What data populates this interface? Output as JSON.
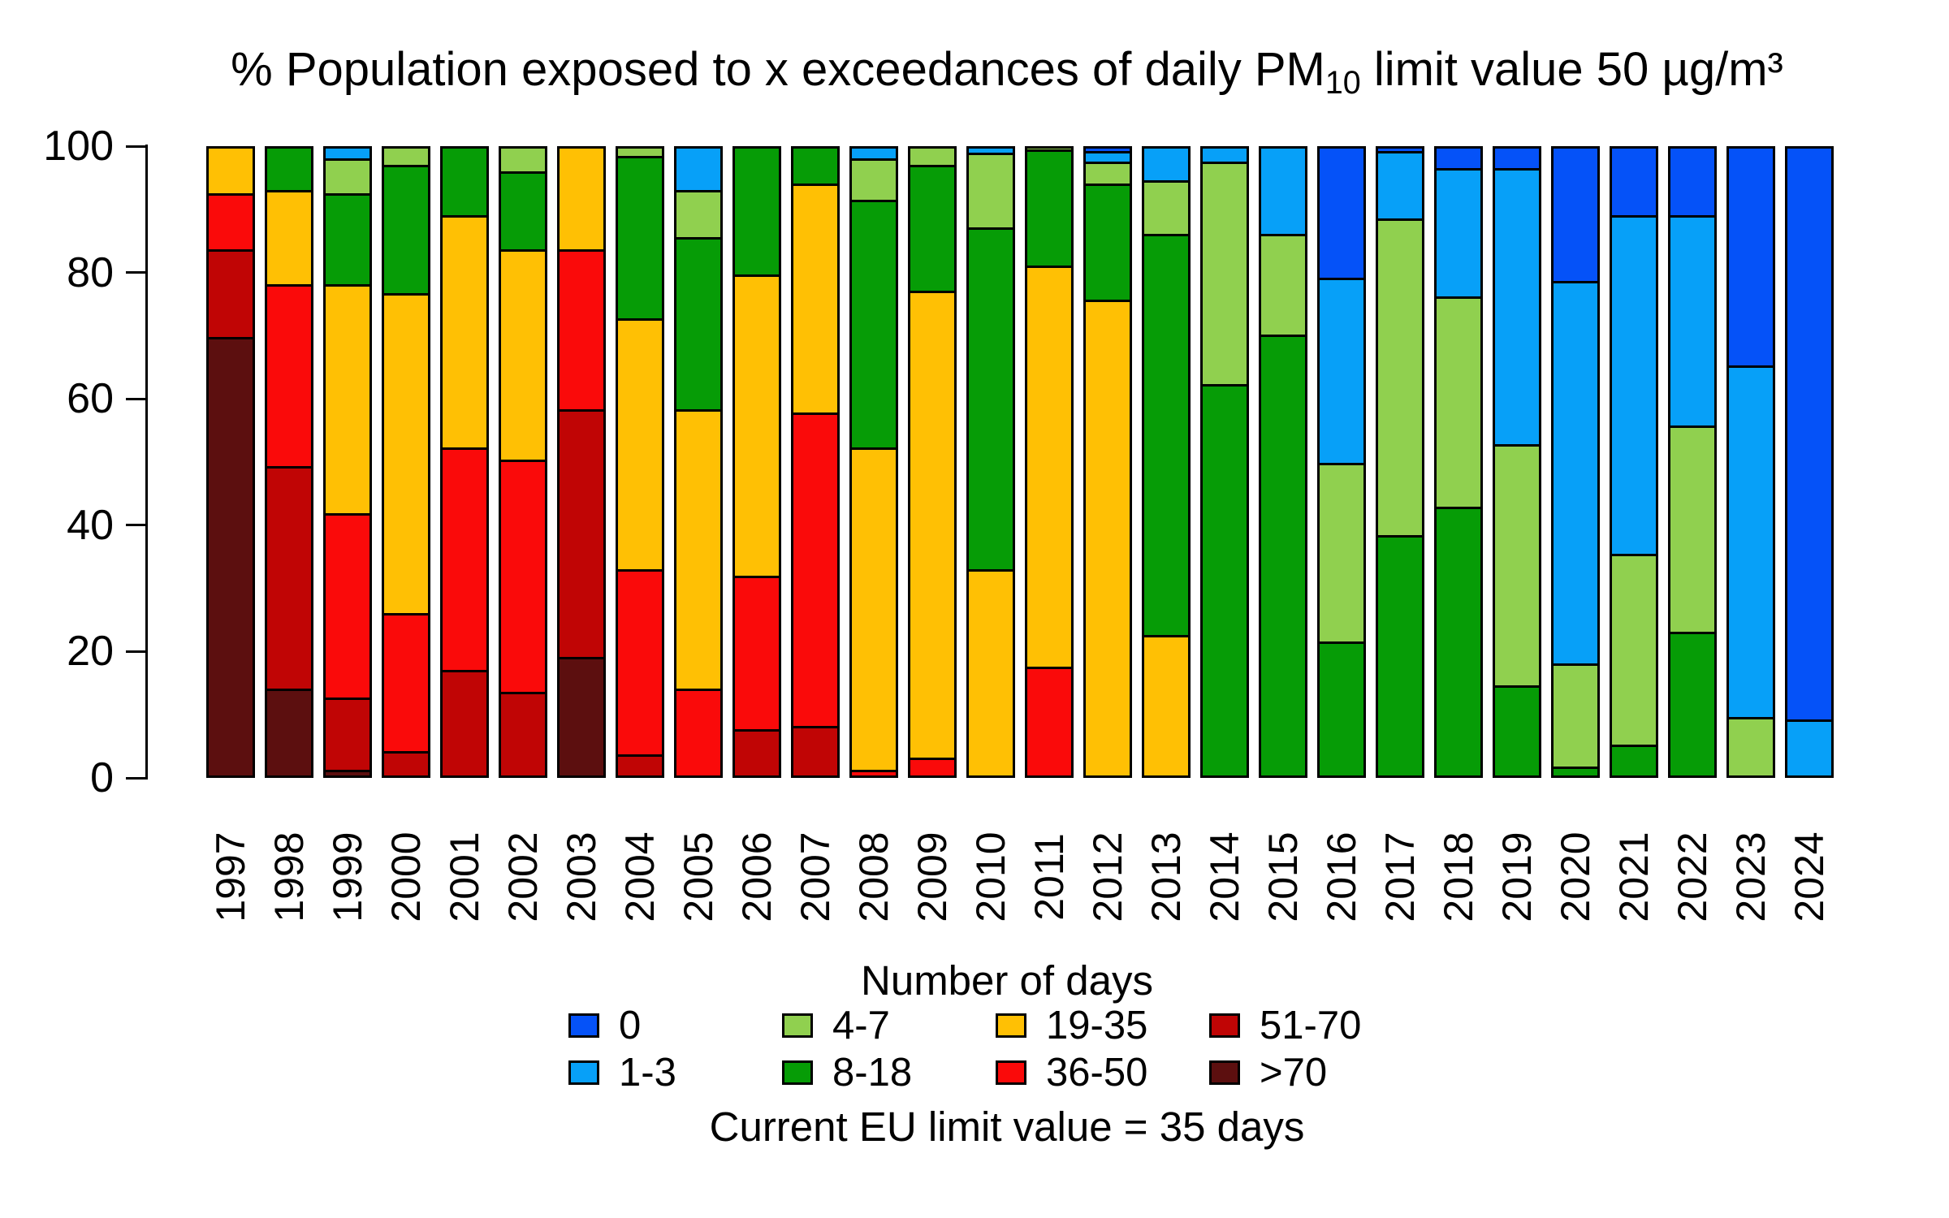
{
  "title": {
    "prefix": "% Population exposed to x exceedances of daily PM",
    "sub": "10",
    "suffix": " limit value 50 µg/m³"
  },
  "y_axis": {
    "ticks": [
      "0",
      "20",
      "40",
      "60",
      "80",
      "100"
    ]
  },
  "legend": {
    "title": "Number of days",
    "note": "Current EU limit value = 35 days",
    "items": [
      {
        "label": "0",
        "color": "#0552F8"
      },
      {
        "label": "1-3",
        "color": "#07A0F8"
      },
      {
        "label": "4-7",
        "color": "#90D04F"
      },
      {
        "label": "8-18",
        "color": "#069C06"
      },
      {
        "label": "19-35",
        "color": "#FFC004"
      },
      {
        "label": "36-50",
        "color": "#FA0A0A"
      },
      {
        "label": "51-70",
        "color": "#C00505"
      },
      {
        "label": ">70",
        "color": "#5C0F0F"
      }
    ]
  },
  "chart_data": {
    "type": "bar",
    "variant": "stacked_percent",
    "title": "% Population exposed to x exceedances of daily PM10 limit value 50 µg/m³",
    "xlabel": "",
    "ylabel": "",
    "ylim": [
      0,
      100
    ],
    "grid": false,
    "legend_position": "bottom",
    "legend_title": "Number of days",
    "annotation": "Current EU limit value = 35 days",
    "categories": [
      "1997",
      "1998",
      "1999",
      "2000",
      "2001",
      "2002",
      "2003",
      "2004",
      "2005",
      "2006",
      "2007",
      "2008",
      "2009",
      "2010",
      "2011",
      "2012",
      "2013",
      "2014",
      "2015",
      "2016",
      "2017",
      "2018",
      "2019",
      "2020",
      "2021",
      "2022",
      "2023",
      "2024"
    ],
    "stack_order_bottom_to_top": [
      ">70",
      "51-70",
      "36-50",
      "19-35",
      "8-18",
      "4-7",
      "1-3",
      "0"
    ],
    "series": [
      {
        "name": ">70",
        "color": "#5C0F0F",
        "values": [
          69.5,
          13.5,
          0.5,
          0,
          0,
          0,
          18.5,
          0,
          0,
          0,
          0,
          0,
          0,
          0,
          0,
          0,
          0,
          0,
          0,
          0,
          0,
          0,
          0,
          0,
          0,
          0,
          0,
          0
        ]
      },
      {
        "name": "51-70",
        "color": "#C00505",
        "values": [
          14,
          35.5,
          11.5,
          3.5,
          16.5,
          13,
          39.5,
          3,
          0,
          7,
          7.5,
          0,
          0,
          0,
          0,
          0,
          0,
          0,
          0,
          0,
          0,
          0,
          0,
          0,
          0,
          0,
          0,
          0
        ]
      },
      {
        "name": "36-50",
        "color": "#FA0A0A",
        "values": [
          9,
          29,
          29.5,
          22,
          35.5,
          37,
          25.5,
          29.5,
          13.5,
          24.5,
          50,
          0.5,
          2.5,
          0,
          17,
          0,
          0,
          0,
          0,
          0,
          0,
          0,
          0,
          0,
          0,
          0,
          0,
          0
        ]
      },
      {
        "name": "19-35",
        "color": "#FFC004",
        "values": [
          7.5,
          15,
          36.5,
          51,
          37,
          33.5,
          16.5,
          40,
          44.5,
          48,
          36.5,
          51.5,
          74.5,
          32.5,
          64,
          75.5,
          22,
          0,
          0,
          0,
          0,
          0,
          0,
          0,
          0,
          0,
          0,
          0
        ]
      },
      {
        "name": "8-18",
        "color": "#069C06",
        "values": [
          0,
          7,
          14.5,
          20.5,
          11,
          12.5,
          0,
          26,
          27.5,
          20.5,
          6,
          39.5,
          20,
          54.5,
          18.5,
          18.5,
          64,
          62,
          70,
          21,
          38,
          42.5,
          14,
          1,
          4.5,
          22.5,
          0,
          0
        ]
      },
      {
        "name": "4-7",
        "color": "#90D04F",
        "values": [
          0,
          0,
          5.5,
          3,
          0,
          4,
          0,
          1.5,
          7.5,
          0,
          0,
          6.5,
          3,
          12,
          0.5,
          3.5,
          8.5,
          35.5,
          16,
          28.5,
          50.5,
          33.5,
          38.5,
          16.5,
          30.5,
          33,
          9,
          0
        ]
      },
      {
        "name": "1-3",
        "color": "#07A0F8",
        "values": [
          0,
          0,
          2,
          0,
          0,
          0,
          0,
          0,
          7,
          0,
          0,
          2,
          0,
          1,
          0,
          1.75,
          5.5,
          2.5,
          14,
          29.5,
          10.75,
          20.5,
          44,
          61,
          54,
          33.5,
          56,
          8.5
        ]
      },
      {
        "name": "0",
        "color": "#0552F8",
        "values": [
          0,
          0,
          0,
          0,
          0,
          0,
          0,
          0,
          0,
          0,
          0,
          0,
          0,
          0,
          0,
          0.75,
          0,
          0,
          0,
          21,
          0.75,
          3.5,
          3.5,
          21.5,
          11,
          11,
          35,
          91.5
        ]
      }
    ]
  }
}
